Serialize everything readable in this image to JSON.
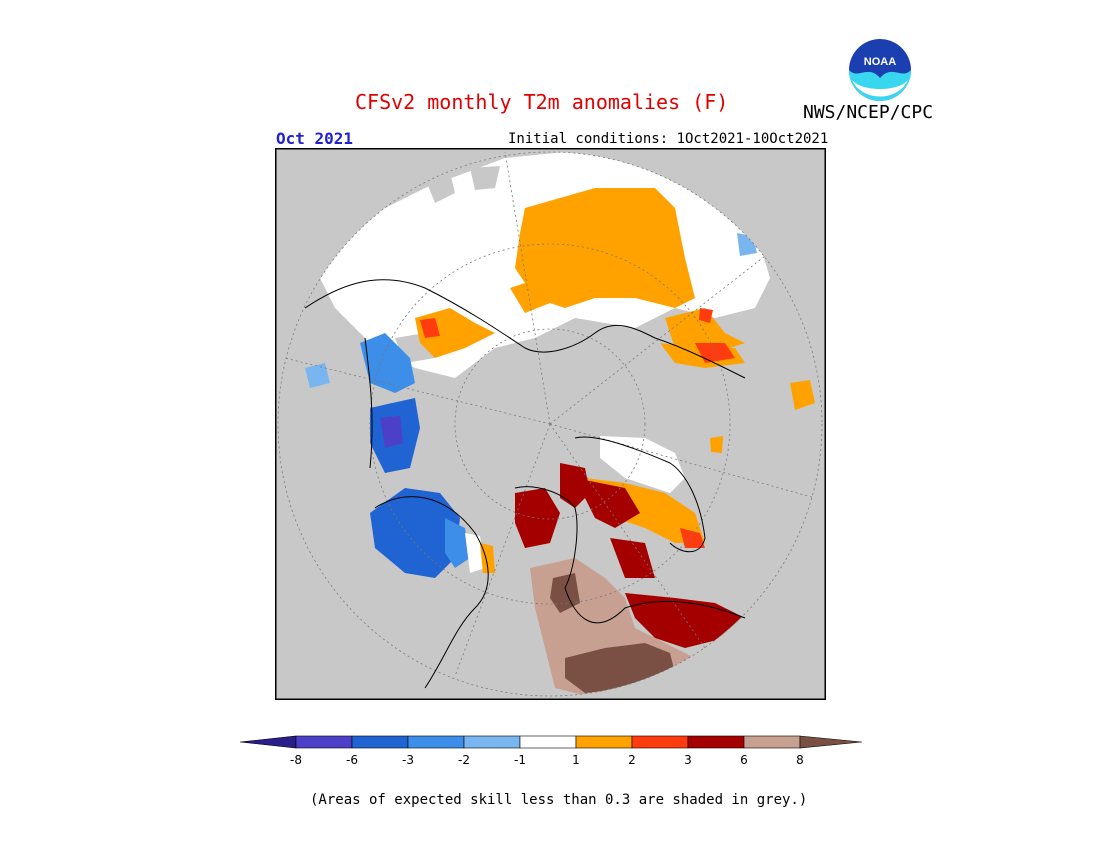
{
  "title": "CFSv2 monthly T2m anomalies (F)",
  "agency": "NWS/NCEP/CPC",
  "logo_text": "NOAA",
  "month": "Oct 2021",
  "initial_conditions": "Initial conditions: 1Oct2021-10Oct2021",
  "footnote": "(Areas of expected skill less than 0.3 are shaded in grey.)",
  "colorbar": {
    "labels": [
      "-8",
      "-6",
      "-3",
      "-2",
      "-1",
      "1",
      "2",
      "3",
      "6",
      "8"
    ],
    "colors": [
      "#2a1d8c",
      "#4c3fc8",
      "#1f64d2",
      "#3d8ee8",
      "#79b6f0",
      "#ffffff",
      "#ffa200",
      "#ff3c10",
      "#a50000",
      "#c8a092",
      "#7a5044"
    ]
  },
  "map_colors": {
    "no_skill": "#c8c8c8",
    "neutral": "#ffffff",
    "warm_1_2": "#ffa200",
    "warm_2_3": "#ff3c10",
    "warm_3_6": "#a50000",
    "warm_6_8": "#c8a092",
    "warm_gt_8": "#7a5044",
    "cool_1_2": "#79b6f0",
    "cool_2_3": "#3d8ee8",
    "cool_3_6": "#1f64d2",
    "cool_6_8": "#4c3fc8"
  }
}
